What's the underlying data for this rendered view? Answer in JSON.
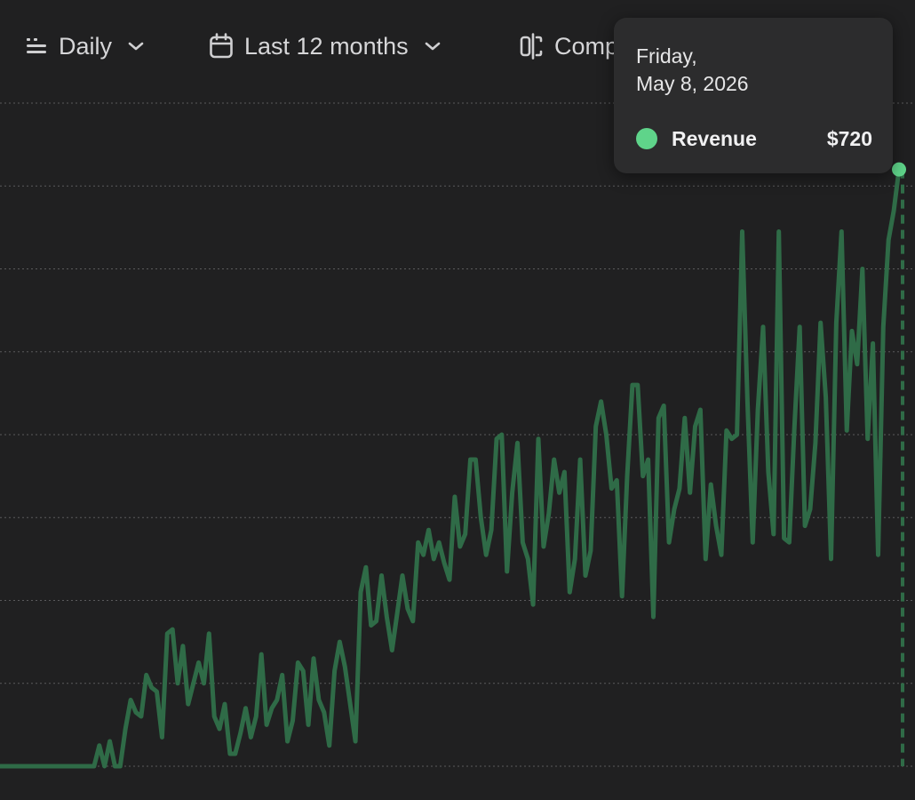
{
  "toolbar": {
    "interval": {
      "label": "Daily",
      "icon": "interval-icon"
    },
    "range": {
      "label": "Last 12 months",
      "icon": "calendar-icon"
    },
    "compare": {
      "label": "Comp",
      "icon": "compare-icon"
    }
  },
  "tooltip": {
    "day": "Friday,",
    "date": "May 8, 2026",
    "series_name": "Revenue",
    "value": "$720"
  },
  "colors": {
    "background": "#202021",
    "line": "#2f6b47",
    "highlight": "#5fd48a",
    "grid": "#5a5a5c"
  },
  "chart_data": {
    "type": "line",
    "series": [
      {
        "name": "Revenue",
        "values": [
          0,
          0,
          0,
          0,
          0,
          0,
          0,
          0,
          0,
          0,
          0,
          0,
          0,
          0,
          0,
          0,
          0,
          0,
          0,
          25,
          0,
          30,
          0,
          0,
          45,
          80,
          65,
          60,
          110,
          95,
          90,
          35,
          160,
          165,
          100,
          145,
          75,
          100,
          125,
          100,
          160,
          60,
          45,
          75,
          15,
          15,
          40,
          70,
          35,
          60,
          135,
          50,
          70,
          80,
          110,
          30,
          55,
          125,
          115,
          50,
          130,
          80,
          65,
          25,
          115,
          150,
          120,
          75,
          30,
          210,
          240,
          170,
          175,
          230,
          180,
          140,
          185,
          230,
          190,
          175,
          270,
          255,
          285,
          250,
          270,
          245,
          225,
          325,
          265,
          280,
          370,
          370,
          300,
          255,
          285,
          395,
          400,
          235,
          330,
          390,
          270,
          250,
          195,
          395,
          265,
          305,
          370,
          330,
          355,
          210,
          250,
          370,
          230,
          260,
          410,
          440,
          400,
          335,
          345,
          205,
          350,
          460,
          460,
          350,
          370,
          180,
          420,
          435,
          270,
          310,
          335,
          420,
          330,
          410,
          430,
          250,
          340,
          290,
          255,
          405,
          395,
          400,
          645,
          440,
          270,
          430,
          530,
          355,
          280,
          645,
          275,
          270,
          410,
          530,
          290,
          310,
          390,
          535,
          445,
          250,
          535,
          645,
          405,
          525,
          485,
          600,
          395,
          510,
          255,
          530,
          635,
          670,
          720
        ]
      }
    ],
    "xlabel": "",
    "ylabel": "",
    "ylim": [
      0,
      800
    ],
    "grid": true,
    "highlight": {
      "date": "May 8, 2026",
      "value": 720
    }
  }
}
